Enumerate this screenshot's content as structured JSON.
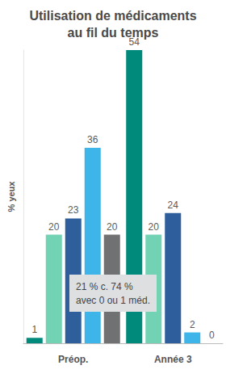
{
  "chart_data": {
    "type": "bar",
    "title": "Utilisation de médicaments\nau fil du temps",
    "y_label": "% yeux",
    "categories": [
      "Préop.",
      "Année 3"
    ],
    "series": [
      {
        "color": "#008a7c",
        "values": [
          1,
          54
        ]
      },
      {
        "color": "#72d2b4",
        "values": [
          20,
          20
        ]
      },
      {
        "color": "#2e5f9c",
        "values": [
          23,
          24
        ]
      },
      {
        "color": "#3db5e8",
        "values": [
          36,
          2
        ]
      },
      {
        "color": "#707173",
        "values": [
          20,
          0
        ]
      }
    ],
    "ylim": [
      0,
      54
    ],
    "tick_labels": "x",
    "data_labels": true,
    "grid": false,
    "annotation": "21 % c. 74 %\navec 0 ou 1 méd."
  }
}
